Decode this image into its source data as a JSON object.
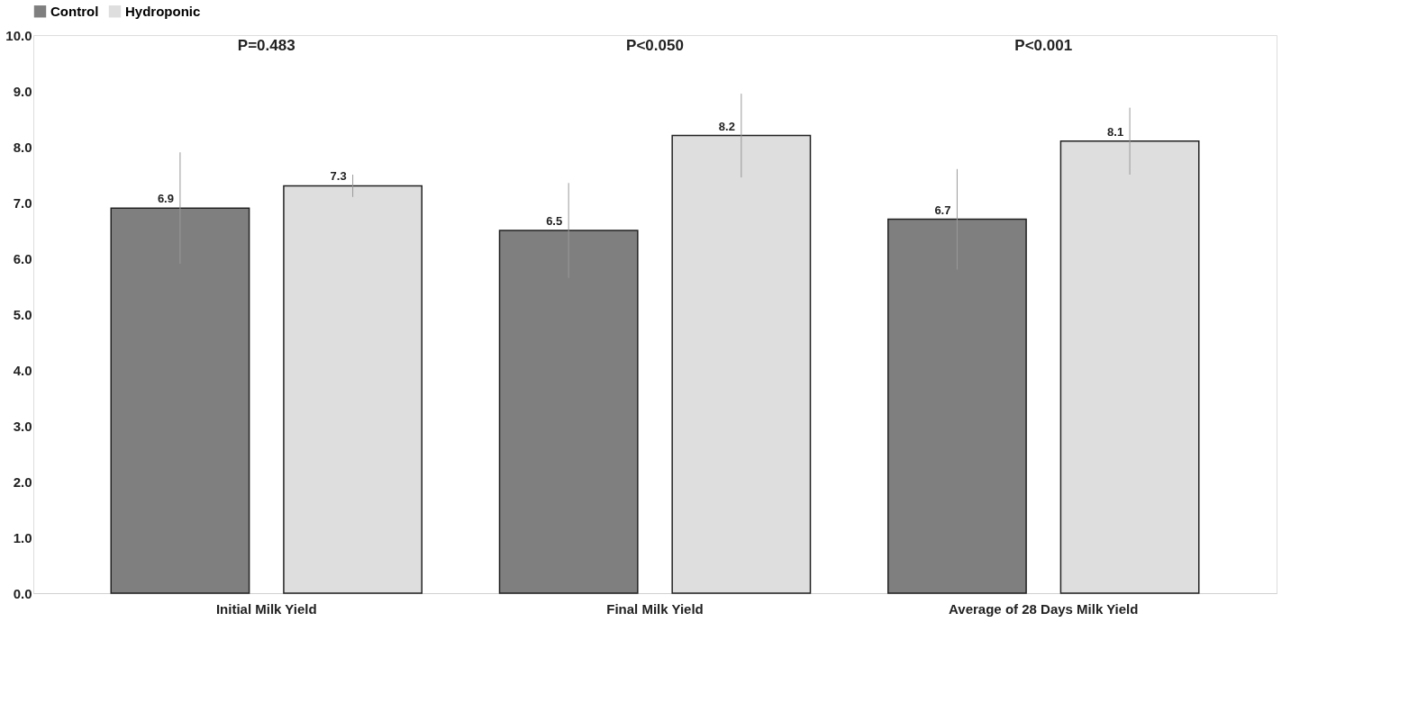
{
  "chart_data": {
    "type": "bar",
    "categories": [
      "Initial Milk Yield",
      "Final Milk Yield",
      "Average of 28 Days Milk Yield"
    ],
    "series": [
      {
        "name": "Control",
        "color": "#7f7f7f",
        "values": [
          6.9,
          6.5,
          6.7
        ],
        "errors": [
          1.0,
          0.85,
          0.9
        ]
      },
      {
        "name": "Hydroponic",
        "color": "#dedede",
        "values": [
          7.3,
          8.2,
          8.1
        ],
        "errors": [
          0.2,
          0.75,
          0.6
        ]
      }
    ],
    "ylim": [
      0,
      10
    ],
    "yticks": [
      {
        "value": 0,
        "label": "0.0"
      },
      {
        "value": 1,
        "label": "1.0"
      },
      {
        "value": 2,
        "label": "2.0"
      },
      {
        "value": 3,
        "label": "3.0"
      },
      {
        "value": 4,
        "label": "4.0"
      },
      {
        "value": 5,
        "label": "5.0"
      },
      {
        "value": 6,
        "label": "6.0"
      },
      {
        "value": 7,
        "label": "7.0"
      },
      {
        "value": 8,
        "label": "8.0"
      },
      {
        "value": 9,
        "label": "9.0"
      },
      {
        "value": 10,
        "label": "10.0"
      }
    ],
    "data_labels": true,
    "grid": false,
    "legend": "top",
    "annotations": [
      "P=0.483",
      "P<0.050",
      "P<0.001"
    ]
  }
}
